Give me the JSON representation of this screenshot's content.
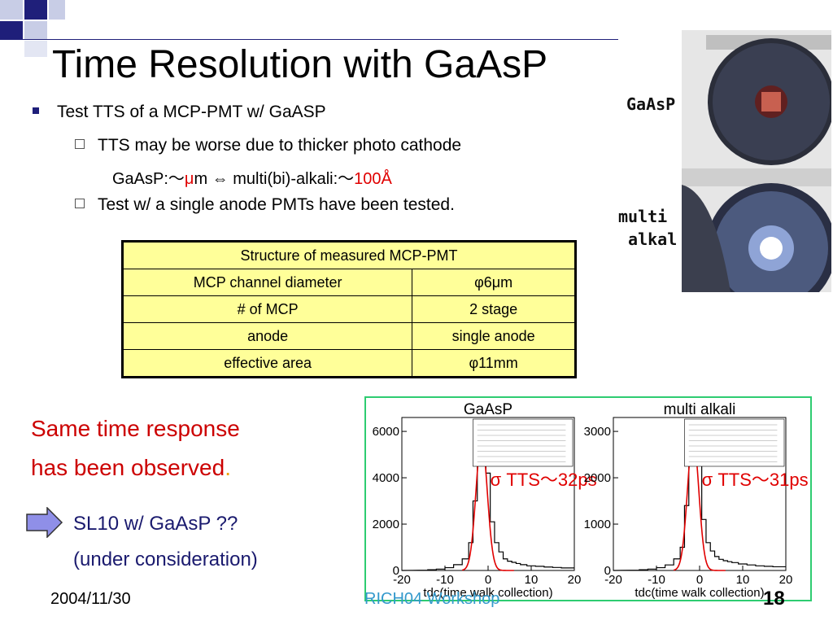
{
  "title": "Time Resolution with GaAsP",
  "bullets": {
    "main": "Test TTS of a MCP-PMT w/ GaASP",
    "sub1": "TTS may be worse due to thicker photo cathode",
    "cont_a": "GaAsP:～",
    "cont_mu": "μ",
    "cont_b": "m ⇔ multi(bi)-alkali:～",
    "cont_red": "100Å",
    "sub2": "Test w/ a single anode PMTs have been tested."
  },
  "table": {
    "header": "Structure of measured MCP-PMT",
    "rows": [
      {
        "label": "MCP channel diameter",
        "value": "φ6μm"
      },
      {
        "label": "# of MCP",
        "value": "2 stage"
      },
      {
        "label": "anode",
        "value": "single anode"
      },
      {
        "label": "effective area",
        "value": "φ11mm"
      }
    ]
  },
  "photo": {
    "label_top": "GaAsP",
    "label_bottom": "multi\n alkal"
  },
  "note": {
    "line1": "Same time response",
    "line2": "has been observed",
    "period": "."
  },
  "plan": {
    "line1": "SL10 w/ GaAsP ??",
    "line2": "(under consideration)"
  },
  "footer": {
    "date": "2004/11/30",
    "center": "RICH04 Workshop",
    "page": "18"
  },
  "chart_data": [
    {
      "type": "histogram",
      "title": "GaAsP",
      "xlabel": "tdc(time walk collection)",
      "xlim": [
        -20,
        20
      ],
      "ylim": [
        0,
        6600
      ],
      "yticks": [
        0,
        2000,
        4000,
        6000
      ],
      "xticks": [
        -20,
        -10,
        0,
        10,
        20
      ],
      "annotation": "σ TTS～32ps",
      "x": [
        -15,
        -13,
        -11,
        -9,
        -7,
        -5,
        -4,
        -3,
        -2,
        -1,
        0,
        1,
        2,
        3,
        4,
        5,
        6,
        7,
        8,
        10,
        12,
        14,
        16,
        18
      ],
      "values": [
        10,
        30,
        60,
        120,
        250,
        500,
        1200,
        3000,
        5700,
        5200,
        4200,
        2100,
        1200,
        800,
        500,
        400,
        350,
        300,
        250,
        200,
        180,
        150,
        130,
        110
      ]
    },
    {
      "type": "histogram",
      "title": "multi alkali",
      "xlabel": "tdc(time walk collection)",
      "xlim": [
        -20,
        20
      ],
      "ylim": [
        0,
        3300
      ],
      "yticks": [
        0,
        1000,
        2000,
        3000
      ],
      "xticks": [
        -20,
        -10,
        0,
        10,
        20
      ],
      "annotation": "σ TTS～31ps",
      "x": [
        -15,
        -13,
        -11,
        -9,
        -7,
        -5,
        -4,
        -3,
        -2,
        -1,
        0,
        1,
        2,
        3,
        4,
        5,
        6,
        7,
        8,
        10,
        12,
        14,
        16,
        18
      ],
      "values": [
        5,
        15,
        30,
        60,
        120,
        250,
        500,
        1400,
        2900,
        2800,
        2300,
        1100,
        600,
        420,
        300,
        240,
        210,
        190,
        170,
        140,
        120,
        100,
        90,
        80
      ]
    }
  ]
}
